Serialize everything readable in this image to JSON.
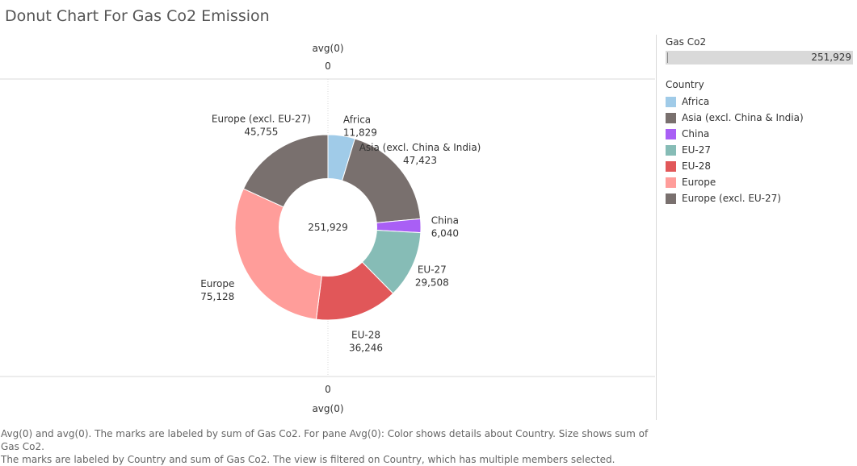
{
  "title": "Donut Chart For Gas Co2 Emission",
  "axis": {
    "top_label": "avg(0)",
    "top_tick": "0",
    "bottom_tick": "0",
    "bottom_label": "avg(0)"
  },
  "colors": {
    "Africa": "#a0cbe8",
    "Asia (excl. China & India)": "#79706e",
    "China": "#a95ff5",
    "EU-27": "#86bcb6",
    "EU-28": "#e15759",
    "Europe": "#ff9d9a",
    "Europe (excl. EU-27)": "#79706e"
  },
  "legend": {
    "size_title": "Gas Co2",
    "size_value": "251,929",
    "color_title": "Country",
    "items": [
      "Africa",
      "Asia (excl. China & India)",
      "China",
      "EU-27",
      "EU-28",
      "Europe",
      "Europe (excl. EU-27)"
    ]
  },
  "caption": {
    "line1": "Avg(0) and avg(0).  The marks are labeled by sum of Gas Co2.  For pane Avg(0):  Color shows details about Country.  Size shows sum of Gas Co2.",
    "line2": "The marks are labeled by Country and sum of Gas Co2. The view is filtered on Country, which has multiple members selected."
  },
  "chart_data": {
    "type": "pie",
    "title": "Donut Chart For Gas Co2 Emission",
    "center_label": "251,929",
    "total": 251929,
    "slices": [
      {
        "label": "Africa",
        "value": 11829,
        "value_label": "11,829"
      },
      {
        "label": "Asia (excl. China & India)",
        "value": 47423,
        "value_label": "47,423"
      },
      {
        "label": "China",
        "value": 6040,
        "value_label": "6,040"
      },
      {
        "label": "EU-27",
        "value": 29508,
        "value_label": "29,508"
      },
      {
        "label": "EU-28",
        "value": 36246,
        "value_label": "36,246"
      },
      {
        "label": "Europe",
        "value": 75128,
        "value_label": "75,128"
      },
      {
        "label": "Europe (excl. EU-27)",
        "value": 45755,
        "value_label": "45,755"
      }
    ]
  }
}
